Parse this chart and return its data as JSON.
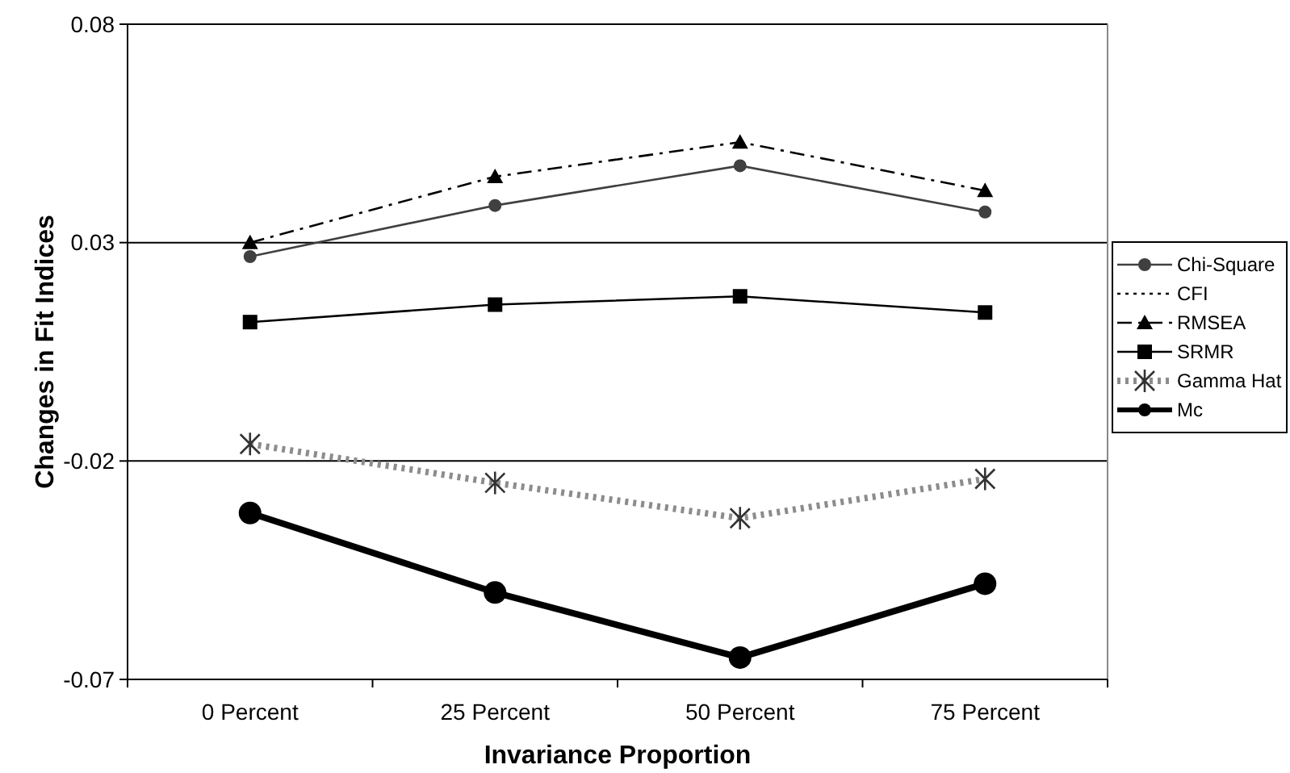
{
  "chart_data": {
    "type": "line",
    "xlabel": "Invariance Proportion",
    "ylabel": "Changes in Fit Indices",
    "categories": [
      "0 Percent",
      "25 Percent",
      "50 Percent",
      "75 Percent"
    ],
    "ylim": [
      -0.07,
      0.08
    ],
    "yticks": [
      -0.07,
      -0.02,
      0.03,
      0.08
    ],
    "grid": "y",
    "legend": "right",
    "series": [
      {
        "name": "Chi-Square",
        "color": "#404040",
        "marker": "circle",
        "line_style": "solid",
        "values": [
          0.0268,
          0.0385,
          0.0476,
          0.037
        ]
      },
      {
        "name": "CFI",
        "color": "#000000",
        "marker": "none",
        "line_style": "dotted",
        "values": [
          null,
          null,
          null,
          null
        ]
      },
      {
        "name": "RMSEA",
        "color": "#000000",
        "marker": "triangle",
        "line_style": "dashed",
        "values": [
          0.03,
          0.0451,
          0.053,
          0.0419
        ]
      },
      {
        "name": "SRMR",
        "color": "#000000",
        "marker": "square",
        "line_style": "solid",
        "values": [
          0.0118,
          0.0158,
          0.0177,
          0.014
        ]
      },
      {
        "name": "Gamma Hat",
        "color": "#8c8c8c",
        "marker": "cross",
        "line_style": "dotted",
        "values": [
          -0.0161,
          -0.025,
          -0.0331,
          -0.0241
        ]
      },
      {
        "name": "Mc",
        "color": "#000000",
        "marker": "circle",
        "line_style": "solid",
        "values": [
          -0.0319,
          -0.0501,
          -0.065,
          -0.0481
        ]
      }
    ]
  }
}
